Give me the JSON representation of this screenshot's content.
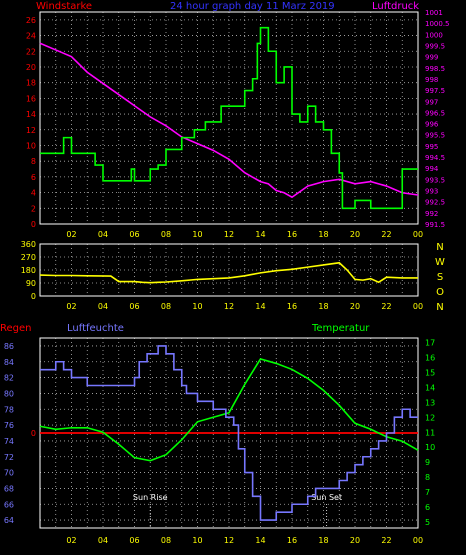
{
  "chart_data": [
    {
      "type": "line",
      "title": "24 hour graph day  11 Marz 2019",
      "left_label": "Windstarke",
      "right_label": "Luftdruck",
      "x_ticks": [
        "02",
        "04",
        "06",
        "08",
        "10",
        "12",
        "14",
        "16",
        "18",
        "20",
        "22",
        "00"
      ],
      "y_left_ticks": [
        "0",
        "2",
        "4",
        "6",
        "8",
        "10",
        "12",
        "14",
        "16",
        "18",
        "20",
        "22",
        "24",
        "26"
      ],
      "y_left_range": [
        0,
        27
      ],
      "y_right_ticks": [
        "991.5",
        "992",
        "992.5",
        "993",
        "993.5",
        "994",
        "994.5",
        "995",
        "995.5",
        "996",
        "996.5",
        "997",
        "997.5",
        "998",
        "998.5",
        "999",
        "999.5",
        "1000",
        "1000.5",
        "1001"
      ],
      "y_right_range": [
        991.5,
        1001
      ],
      "series": [
        {
          "color": "#00ff00",
          "step": true,
          "x": [
            0,
            1.5,
            2,
            3.5,
            4,
            5.3,
            5.8,
            6,
            6.5,
            7,
            7.5,
            8,
            9,
            9.8,
            10,
            10.5,
            11,
            11.5,
            12,
            12.3,
            12.7,
            13,
            13.5,
            13.8,
            14,
            14.5,
            15,
            15.5,
            16,
            16.5,
            17,
            17.5,
            18,
            18.5,
            19,
            19.2,
            20,
            21,
            22,
            23,
            24
          ],
          "y": [
            9,
            11,
            9,
            7.5,
            5.5,
            5.5,
            7,
            5.5,
            5.5,
            7,
            7.5,
            9.5,
            11,
            12,
            12,
            13,
            13,
            15,
            15,
            15,
            15,
            17,
            18.5,
            23,
            25,
            22,
            18,
            20,
            14,
            13,
            15,
            13,
            12,
            9,
            6.5,
            2,
            3,
            2,
            2,
            7,
            7
          ]
        },
        {
          "color": "#ff00ff",
          "step": false,
          "x": [
            0,
            1,
            2,
            3,
            4,
            5,
            6,
            7,
            8,
            9,
            10,
            11,
            12,
            13,
            13.5,
            14,
            14.5,
            15,
            15.5,
            16,
            17,
            18,
            19,
            20,
            21,
            22,
            23,
            24
          ],
          "y": [
            999.6,
            999.3,
            999,
            998.3,
            997.8,
            997.3,
            996.8,
            996.3,
            995.9,
            995.4,
            995.1,
            994.8,
            994.4,
            993.8,
            993.6,
            993.4,
            993.3,
            993,
            992.9,
            992.7,
            993.2,
            993.4,
            993.5,
            993.3,
            993.4,
            993.2,
            992.9,
            992.8
          ]
        }
      ]
    },
    {
      "type": "line",
      "x_ticks": [
        "02",
        "04",
        "06",
        "08",
        "10",
        "12",
        "14",
        "16",
        "18",
        "20",
        "22",
        "00"
      ],
      "y_ticks": [
        "0",
        "90",
        "180",
        "270",
        "360"
      ],
      "y_range": [
        0,
        360
      ],
      "direction_labels": [
        "N",
        "W",
        "S",
        "O",
        "N"
      ],
      "series": [
        {
          "color": "#ffff00",
          "x": [
            0,
            1,
            2,
            3,
            4.5,
            5,
            6,
            6.5,
            7,
            7.5,
            8,
            9,
            10,
            11,
            12,
            13,
            13.5,
            14,
            15,
            16,
            17,
            18,
            19,
            19.5,
            20,
            20.5,
            21,
            21.5,
            22,
            23,
            24
          ],
          "y": [
            145,
            142,
            142,
            140,
            138,
            100,
            100,
            95,
            92,
            95,
            97,
            105,
            115,
            120,
            125,
            140,
            150,
            160,
            175,
            185,
            200,
            215,
            230,
            180,
            115,
            110,
            120,
            95,
            130,
            125,
            125
          ]
        }
      ]
    },
    {
      "type": "line",
      "left_label": "Regen",
      "left_label_2": "Luftfeuchte",
      "right_label": "Temperatur",
      "x_ticks": [
        "02",
        "04",
        "06",
        "08",
        "10",
        "12",
        "14",
        "16",
        "18",
        "20",
        "22",
        "00"
      ],
      "y_left_ticks": [
        "64",
        "66",
        "68",
        "70",
        "72",
        "74",
        "76",
        "78",
        "80",
        "82",
        "84",
        "86"
      ],
      "y_left_range": [
        63,
        87
      ],
      "y_right_ticks": [
        "5",
        "6",
        "7",
        "8",
        "9",
        "10",
        "11",
        "12",
        "13",
        "14",
        "15",
        "16",
        "17"
      ],
      "y_right_range": [
        4.6,
        17.3
      ],
      "rain_tick": "0",
      "rain_level": 75,
      "annotations": [
        {
          "text": "Sun Rise",
          "x": 7.0
        },
        {
          "text": "Sun Set",
          "x": 18.2
        }
      ],
      "series": [
        {
          "color": "#7777ff",
          "step": true,
          "x": [
            0,
            0.5,
            1,
            1.5,
            2,
            3,
            3.8,
            4,
            5,
            6,
            6.3,
            6.8,
            7.3,
            7.5,
            8,
            8.5,
            9,
            9.3,
            9.7,
            10,
            10.5,
            11,
            11.3,
            11.8,
            12,
            12.3,
            12.6,
            13,
            13.5,
            14,
            15,
            16,
            17,
            17.5,
            18,
            18.5,
            19,
            19.5,
            20,
            20.5,
            21,
            21.5,
            22,
            22.5,
            23,
            23.5,
            24
          ],
          "y": [
            83,
            83,
            84,
            83,
            82,
            81,
            81,
            81,
            81,
            82,
            84,
            85,
            85,
            86,
            85,
            83,
            81,
            80,
            80,
            79,
            79,
            78,
            78,
            77,
            77,
            76,
            73,
            70,
            67,
            64,
            65,
            66,
            67,
            68,
            68,
            68,
            69,
            70,
            71,
            72,
            73,
            74,
            75,
            77,
            78,
            77,
            77
          ]
        },
        {
          "color": "#00ff00",
          "step": false,
          "x": [
            0,
            1,
            2,
            3,
            4,
            5,
            6,
            7,
            8,
            9,
            10,
            11,
            12,
            13,
            14,
            15,
            16,
            17,
            18,
            19,
            20,
            21,
            22,
            23,
            24
          ],
          "y": [
            11.4,
            11.2,
            11.3,
            11.3,
            11,
            10.2,
            9.3,
            9.1,
            9.5,
            10.5,
            11.7,
            12,
            12.3,
            14.2,
            15.9,
            15.6,
            15.2,
            14.6,
            13.8,
            12.8,
            11.6,
            11.2,
            10.7,
            10.4,
            9.8
          ]
        }
      ]
    }
  ]
}
